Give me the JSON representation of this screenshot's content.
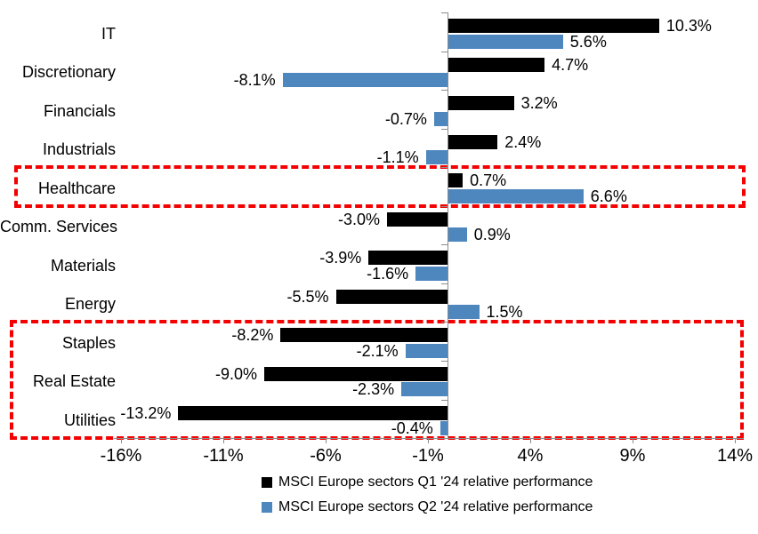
{
  "chart_data": {
    "type": "bar",
    "orientation": "horizontal",
    "title": "",
    "xlabel": "",
    "ylabel": "",
    "grid": false,
    "legend_position": "bottom",
    "xlim": [
      -16,
      14
    ],
    "xticks": [
      -16,
      -11,
      -6,
      -1,
      4,
      9,
      14
    ],
    "xtick_labels": [
      "-16%",
      "-11%",
      "-6%",
      "-1%",
      "4%",
      "9%",
      "14%"
    ],
    "categories": [
      "IT",
      "Discretionary",
      "Financials",
      "Industrials",
      "Healthcare",
      "Comm. Services",
      "Materials",
      "Energy",
      "Staples",
      "Real Estate",
      "Utilities"
    ],
    "series": [
      {
        "name": "MSCI Europe sectors Q1 '24 relative performance",
        "color": "#000000",
        "values": [
          10.3,
          4.7,
          3.2,
          2.4,
          0.7,
          -3.0,
          -3.9,
          -5.5,
          -8.2,
          -9.0,
          -13.2
        ],
        "value_labels": [
          "10.3%",
          "4.7%",
          "3.2%",
          "2.4%",
          "0.7%",
          "-3.0%",
          "-3.9%",
          "-5.5%",
          "-8.2%",
          "-9.0%",
          "-13.2%"
        ]
      },
      {
        "name": "MSCI Europe sectors Q2 '24 relative performance",
        "color": "#4e86be",
        "values": [
          5.6,
          -8.1,
          -0.7,
          -1.1,
          6.6,
          0.9,
          -1.6,
          1.5,
          -2.1,
          -2.3,
          -0.4
        ],
        "value_labels": [
          "5.6%",
          "-8.1%",
          "-0.7%",
          "-1.1%",
          "6.6%",
          "0.9%",
          "-1.6%",
          "1.5%",
          "-2.1%",
          "-2.3%",
          "-0.4%"
        ]
      }
    ],
    "axis_color": "#8c8c8c",
    "annotations": {
      "highlight_boxes": [
        {
          "categories": [
            "Healthcare"
          ],
          "color": "#f40000",
          "style": "dashed"
        },
        {
          "categories": [
            "Staples",
            "Real Estate",
            "Utilities"
          ],
          "color": "#f40000",
          "style": "dashed"
        }
      ]
    }
  }
}
